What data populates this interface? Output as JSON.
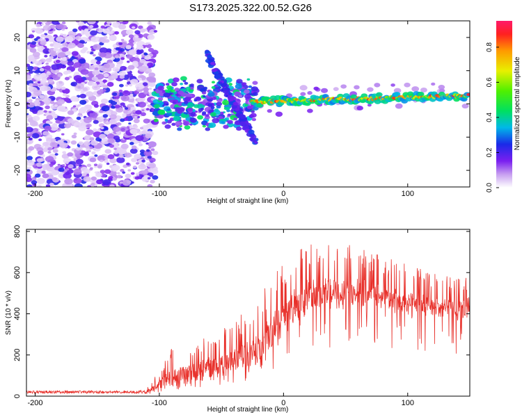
{
  "title": "S173.2025.322.00.52.G26",
  "chart_data": [
    {
      "type": "heatmap",
      "title": "S173.2025.322.00.52.G26",
      "xlabel": "Height of straight line (km)",
      "ylabel": "Frequency (Hz)",
      "xlim": [
        -207,
        150
      ],
      "ylim": [
        -25,
        25
      ],
      "x_ticks": [
        -200,
        -100,
        0,
        100
      ],
      "y_ticks": [
        -20,
        -10,
        0,
        10,
        20
      ],
      "colorbar": {
        "label": "Normalized spectral amplitude",
        "range": [
          0,
          0.95
        ],
        "ticks": [
          0.0,
          0.2,
          0.4,
          0.6,
          0.8
        ]
      },
      "features": {
        "noise_region_x": [
          -207,
          -103
        ],
        "carrier_line": {
          "x_start": -25,
          "x_end": 150,
          "freq_start": 0.6,
          "freq_end": 2.5
        },
        "slanted_branch": {
          "x": [
            -62,
            -22
          ],
          "freq": [
            15,
            -12
          ]
        }
      }
    },
    {
      "type": "line",
      "xlabel": "Height of straight line (km)",
      "ylabel": "SNR (10 * v/v)",
      "xlim": [
        -207,
        150
      ],
      "ylim": [
        0,
        810
      ],
      "x_ticks": [
        -200,
        -100,
        0,
        100
      ],
      "y_ticks": [
        0,
        200,
        400,
        600,
        800
      ],
      "series": [
        {
          "name": "SNR",
          "color": "#e8302a",
          "envelope": {
            "x": [
              -207,
              -110,
              -100,
              -90,
              -80,
              -70,
              -60,
              -50,
              -40,
              -30,
              -20,
              -10,
              0,
              10,
              20,
              30,
              40,
              50,
              60,
              70,
              80,
              90,
              100,
              110,
              120,
              130,
              140,
              150
            ],
            "baseline": [
              20,
              20,
              30,
              55,
              75,
              80,
              95,
              110,
              120,
              140,
              170,
              240,
              330,
              400,
              440,
              460,
              470,
              470,
              470,
              465,
              455,
              445,
              435,
              430,
              420,
              415,
              410,
              410
            ],
            "peak": [
              38,
              45,
              130,
              240,
              260,
              270,
              310,
              320,
              370,
              420,
              520,
              580,
              650,
              700,
              740,
              780,
              760,
              740,
              720,
              700,
              680,
              660,
              640,
              620,
              600,
              590,
              580,
              590
            ]
          }
        }
      ]
    }
  ]
}
